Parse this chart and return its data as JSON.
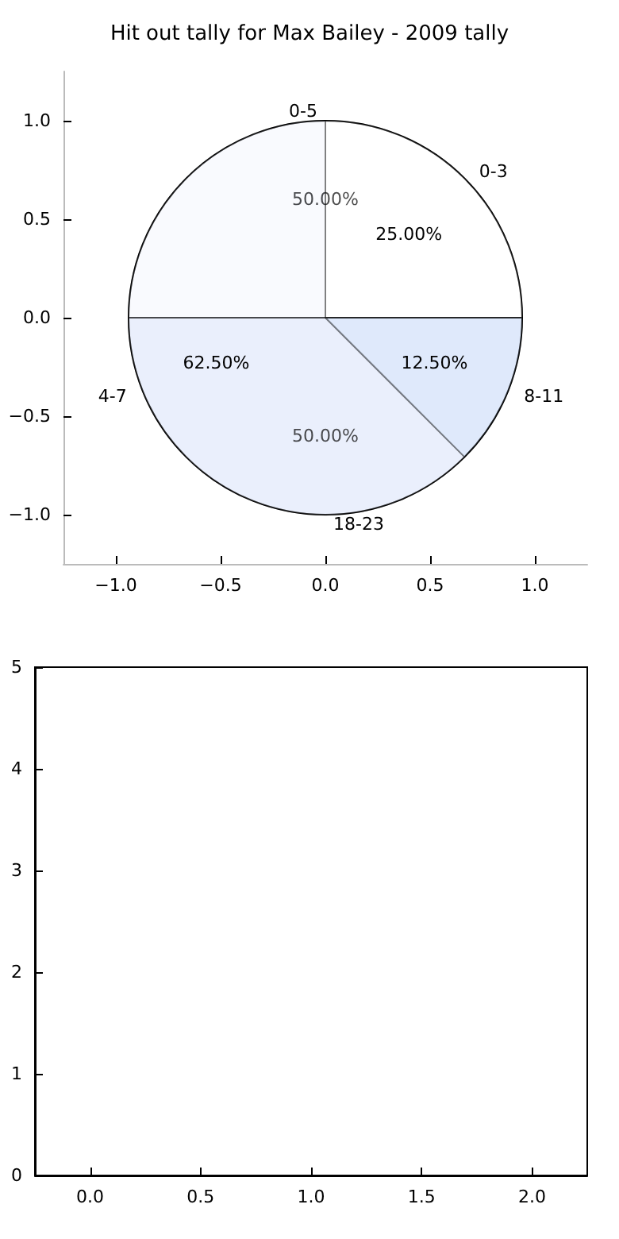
{
  "chart_data": [
    {
      "type": "scatter",
      "title": "Hit out tally for Max Bailey - 2009 tally",
      "xlim": [
        -1.25,
        1.25
      ],
      "ylim": [
        -1.25,
        1.25
      ],
      "xticks": [
        {
          "value": -1,
          "label": "−1.0"
        },
        {
          "value": -0.5,
          "label": "−0.5"
        },
        {
          "value": 0,
          "label": "0.0"
        },
        {
          "value": 0.5,
          "label": "0.5"
        },
        {
          "value": 1,
          "label": "1.0"
        }
      ],
      "yticks": [
        {
          "value": -1,
          "label": "−1.0"
        },
        {
          "value": -0.5,
          "label": "−0.5"
        },
        {
          "value": 0,
          "label": "0.0"
        },
        {
          "value": 0.5,
          "label": "0.5"
        },
        {
          "value": 1,
          "label": "1.0"
        }
      ]
    },
    {
      "type": "pie",
      "categories": [
        "0-5",
        "18-23"
      ],
      "values": [
        50,
        50
      ],
      "colors": [
        "#ffffff",
        "#eaf0fc"
      ],
      "value_labels": [
        "50.00%",
        "50.00%"
      ]
    },
    {
      "type": "pie",
      "categories": [
        "0-3",
        "4-7",
        "8-11"
      ],
      "values": [
        25,
        62.5,
        12.5
      ],
      "colors": [
        "#ffffff",
        "#eaf0fc",
        "#c8daf8"
      ],
      "value_labels": [
        "25.00%",
        "62.50%",
        "12.50%"
      ]
    },
    {
      "type": "scatter",
      "xlim": [
        -0.25,
        2.25
      ],
      "ylim": [
        0,
        5
      ],
      "xticks": [
        {
          "value": 0,
          "label": "0.0"
        },
        {
          "value": 0.5,
          "label": "0.5"
        },
        {
          "value": 1,
          "label": "1.0"
        },
        {
          "value": 1.5,
          "label": "1.5"
        },
        {
          "value": 2,
          "label": "2.0"
        }
      ],
      "yticks": [
        0,
        1,
        2,
        3,
        4,
        5
      ]
    }
  ]
}
